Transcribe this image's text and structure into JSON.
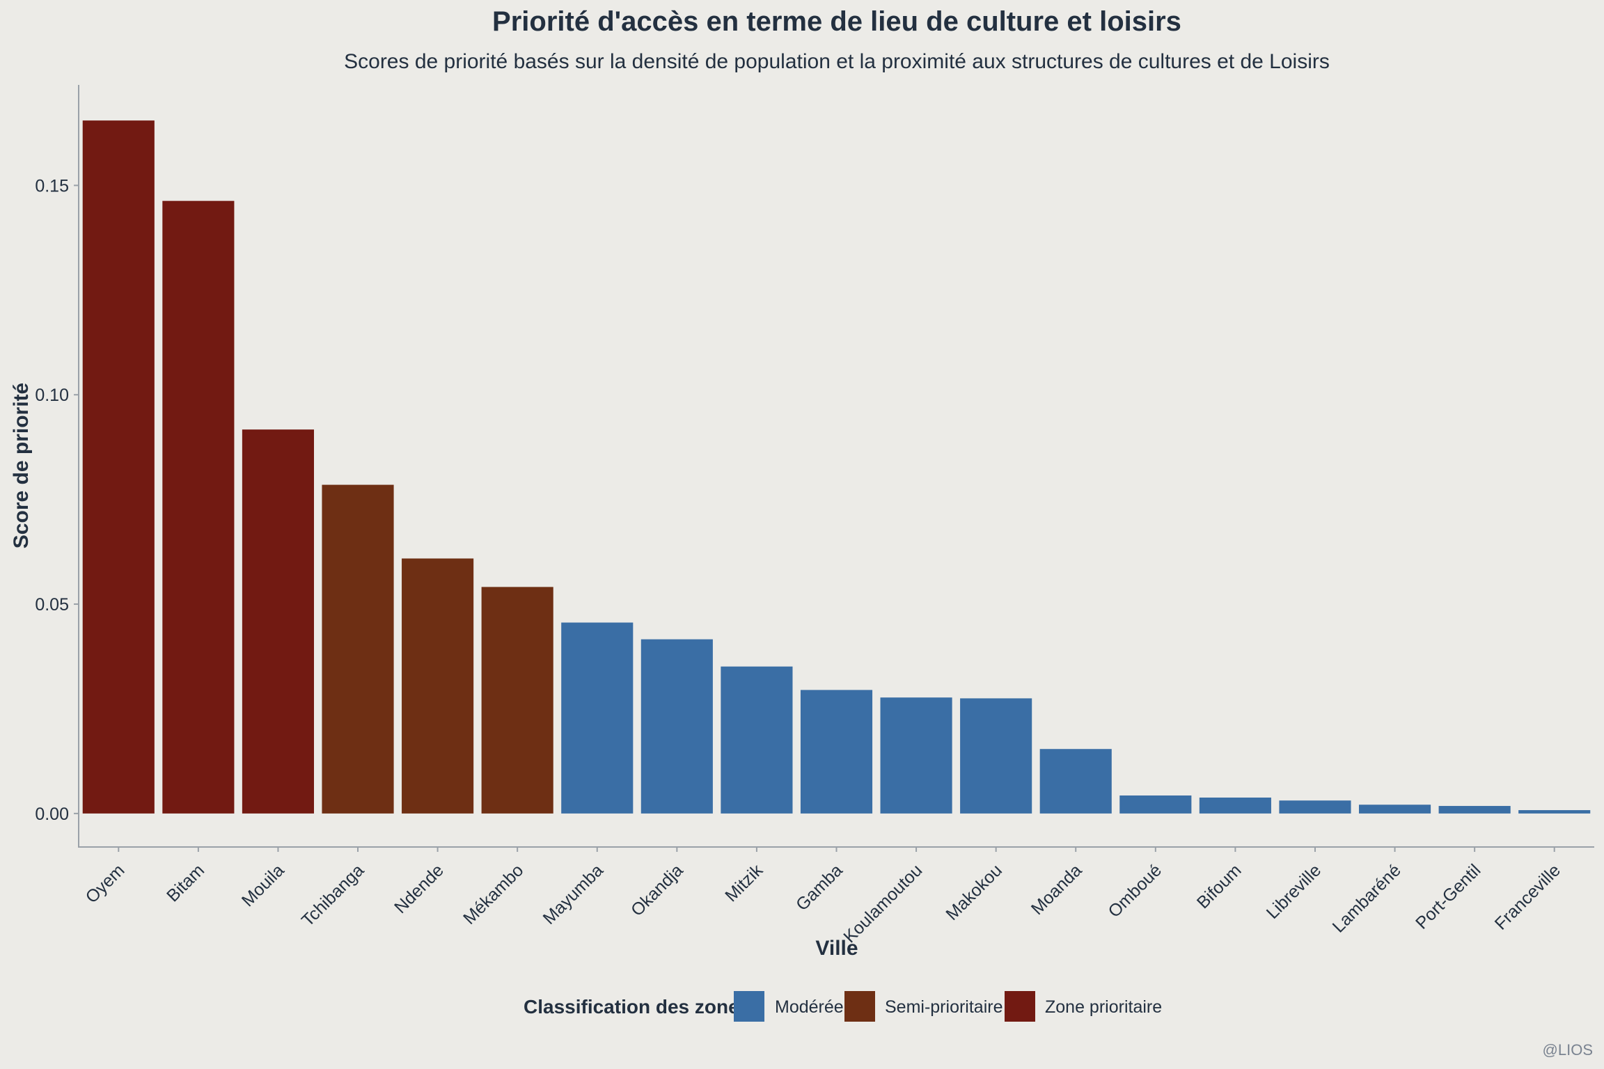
{
  "chart_data": {
    "type": "bar",
    "title": "Priorité d'accès en terme de lieu de culture et loisirs",
    "subtitle": "Scores de priorité basés sur la densité de population et la proximité aux structures de cultures et de Loisirs",
    "xlabel": "Ville",
    "ylabel": "Score de priorité",
    "ylim": [
      -0.008,
      0.174
    ],
    "yticks": [
      0.0,
      0.05,
      0.1,
      0.15
    ],
    "ytick_labels": [
      "0.00",
      "0.05",
      "0.10",
      "0.15"
    ],
    "grid": false,
    "categories": [
      "Oyem",
      "Bitam",
      "Mouila",
      "Tchibanga",
      "Ndende",
      "Mékambo",
      "Mayumba",
      "Okandja",
      "Mitzik",
      "Gamba",
      "Koulamoutou",
      "Makokou",
      "Moanda",
      "Omboué",
      "Bifoum",
      "Libreville",
      "Lambaréné",
      "Port-Gentil",
      "Franceville"
    ],
    "values": [
      0.1655,
      0.1463,
      0.0917,
      0.0785,
      0.0609,
      0.0541,
      0.0456,
      0.0416,
      0.0351,
      0.0295,
      0.0277,
      0.0275,
      0.0154,
      0.0043,
      0.0038,
      0.0031,
      0.0021,
      0.0018,
      0.0008
    ],
    "classes": [
      "Zone prioritaire",
      "Zone prioritaire",
      "Zone prioritaire",
      "Semi-prioritaire",
      "Semi-prioritaire",
      "Semi-prioritaire",
      "Modérée",
      "Modérée",
      "Modérée",
      "Modérée",
      "Modérée",
      "Modérée",
      "Modérée",
      "Modérée",
      "Modérée",
      "Modérée",
      "Modérée",
      "Modérée",
      "Modérée"
    ],
    "legend": {
      "title": "Classification des zones",
      "position": "bottom",
      "entries": [
        {
          "label": "Modérée",
          "color": "#3a6ea5"
        },
        {
          "label": "Semi-prioritaire",
          "color": "#6e2f14"
        },
        {
          "label": "Zone prioritaire",
          "color": "#721a12"
        }
      ]
    },
    "caption": "@LIOS"
  },
  "colors": {
    "background": "#ecebe7",
    "text": "#233040",
    "axis": "#9aa1a8"
  }
}
